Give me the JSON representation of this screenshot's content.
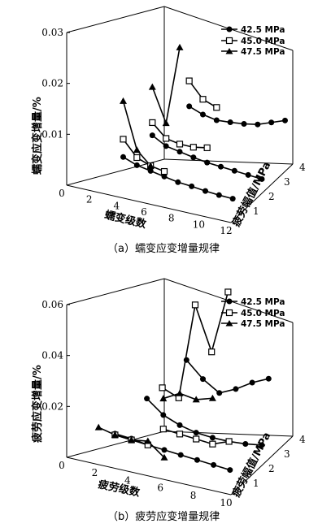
{
  "chart_data": [
    {
      "type": "line",
      "panel": "a",
      "caption": "（a）蠕变应变增量规律",
      "xlabel": "蠕变级数",
      "ylabel": "蠕变应变增量/%",
      "zlabel": "疲劳幅值/MPa",
      "xticks": [
        "0",
        "2",
        "4",
        "6",
        "8",
        "10",
        "12"
      ],
      "yticks": [
        "0.01",
        "0.02",
        "0.03"
      ],
      "zticks": [
        "1",
        "2",
        "3",
        "4"
      ],
      "xlim": [
        0,
        12
      ],
      "ylim": [
        0,
        0.03
      ],
      "legend_position": "top-right",
      "series": [
        {
          "name": "42.5 MPa",
          "marker": "circle-filled",
          "lanes": [
            {
              "z": 1,
              "x": [
                3,
                4,
                5,
                6,
                7,
                8,
                9,
                10,
                11
              ],
              "y": [
                0.0045,
                0.0035,
                0.003,
                0.0025,
                0.002,
                0.0018,
                0.0015,
                0.0013,
                0.0012
              ]
            },
            {
              "z": 2,
              "x": [
                4,
                5,
                6,
                7,
                8,
                9,
                10,
                11,
                12
              ],
              "y": [
                0.0065,
                0.005,
                0.0045,
                0.004,
                0.0036,
                0.0034,
                0.0032,
                0.003,
                0.0028
              ]
            },
            {
              "z": 3.5,
              "x": [
                5,
                6,
                7,
                8,
                9,
                10,
                11,
                12
              ],
              "y": [
                0.0085,
                0.0075,
                0.007,
                0.0072,
                0.0075,
                0.008,
                0.009,
                0.01
              ]
            }
          ]
        },
        {
          "name": "45.0 MPa",
          "marker": "square-open",
          "lanes": [
            {
              "z": 1,
              "x": [
                3,
                4,
                5,
                6
              ],
              "y": [
                0.008,
                0.005,
                0.004,
                0.0035
              ]
            },
            {
              "z": 2,
              "x": [
                4,
                5,
                6,
                7,
                8
              ],
              "y": [
                0.009,
                0.0065,
                0.006,
                0.006,
                0.0065
              ]
            },
            {
              "z": 3.5,
              "x": [
                5,
                6,
                7
              ],
              "y": [
                0.0135,
                0.0105,
                0.0095
              ]
            }
          ]
        },
        {
          "name": "47.5 MPa",
          "marker": "triangle-filled",
          "lanes": [
            {
              "z": 1,
              "x": [
                3,
                4,
                5
              ],
              "y": [
                0.0155,
                0.0065,
                0.004
              ]
            },
            {
              "z": 2,
              "x": [
                4,
                5,
                6
              ],
              "y": [
                0.016,
                0.0095,
                0.025
              ]
            }
          ]
        }
      ]
    },
    {
      "type": "line",
      "panel": "b",
      "caption": "（b）疲劳应变增量规律",
      "xlabel": "疲劳级数",
      "ylabel": "疲劳应变增量/%",
      "zlabel": "疲劳幅值/MPa",
      "xticks": [
        "0",
        "2",
        "4",
        "6",
        "8",
        "10"
      ],
      "yticks": [
        "0.02",
        "0.04",
        "0.06"
      ],
      "zticks": [
        "1",
        "2",
        "3",
        "4"
      ],
      "xlim": [
        0,
        10
      ],
      "ylim": [
        0,
        0.06
      ],
      "legend_position": "top-right",
      "series": [
        {
          "name": "42.5 MPa",
          "marker": "circle-filled",
          "lanes": [
            {
              "z": 1,
              "x": [
                2,
                3,
                4,
                5,
                6,
                7,
                8,
                9
              ],
              "y": [
                0.0065,
                0.006,
                0.005,
                0.0045,
                0.004,
                0.0035,
                0.003,
                0.0025
              ]
            },
            {
              "z": 2,
              "x": [
                3,
                4,
                5,
                6,
                7,
                8,
                9,
                10
              ],
              "y": [
                0.016,
                0.011,
                0.0085,
                0.007,
                0.0065,
                0.0065,
                0.007,
                0.008
              ]
            },
            {
              "z": 3.5,
              "x": [
                4,
                5,
                6,
                7,
                8,
                9
              ],
              "y": [
                0.024,
                0.018,
                0.014,
                0.017,
                0.021,
                0.024
              ]
            }
          ]
        },
        {
          "name": "45.0 MPa",
          "marker": "square-open",
          "lanes": [
            {
              "z": 1,
              "x": [
                2,
                3,
                4
              ],
              "y": [
                0.006,
                0.0055,
                0.005
              ]
            },
            {
              "z": 2,
              "x": [
                4,
                5,
                6,
                7,
                8
              ],
              "y": [
                0.0055,
                0.005,
                0.0045,
                0.004,
                0.0065
              ]
            },
            {
              "z": 3,
              "x": [
                3,
                4,
                5,
                6,
                7
              ],
              "y": [
                0.0145,
                0.012,
                0.05,
                0.033,
                0.058
              ]
            }
          ]
        },
        {
          "name": "47.5 MPa",
          "marker": "triangle-filled",
          "lanes": [
            {
              "z": 1,
              "x": [
                1,
                2,
                3,
                4,
                5
              ],
              "y": [
                0.0075,
                0.006,
                0.0055,
                0.0065,
                0.0015
              ]
            },
            {
              "z": 2,
              "x": [
                4,
                5,
                6,
                7
              ],
              "y": [
                0.0175,
                0.021,
                0.02,
                0.022
              ]
            }
          ]
        }
      ]
    }
  ]
}
